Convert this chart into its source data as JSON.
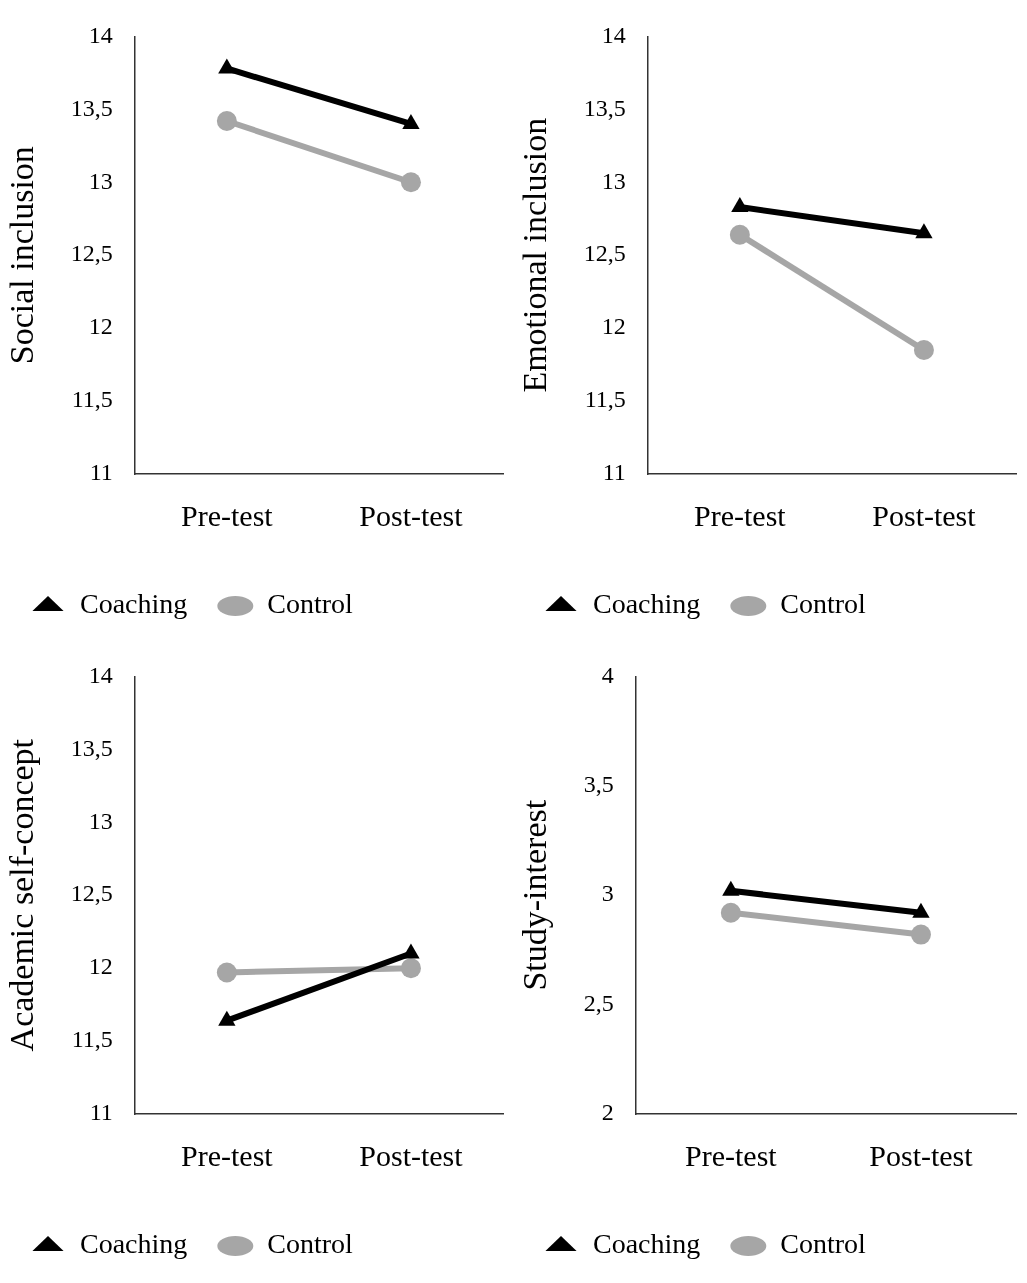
{
  "chart_data": [
    {
      "type": "line",
      "ylabel": "Social inclusion",
      "categories": [
        "Pre-test",
        "Post-test"
      ],
      "ylim": [
        11,
        14
      ],
      "yticks": [
        11,
        {
          "value": 11.5,
          "label": "11,5"
        },
        12,
        {
          "value": 12.5,
          "label": "12,5"
        },
        13,
        {
          "value": 13.5,
          "label": "13,5"
        },
        14
      ],
      "grid": false,
      "legend": "bottom",
      "series": [
        {
          "name": "Coaching",
          "color": "#000000",
          "marker": "triangle",
          "values": [
            13.78,
            13.4
          ]
        },
        {
          "name": "Control",
          "color": "#a6a6a6",
          "marker": "circle",
          "values": [
            13.42,
            13.0
          ]
        }
      ]
    },
    {
      "type": "line",
      "ylabel": "Emotional inclusion",
      "categories": [
        "Pre-test",
        "Post-test"
      ],
      "ylim": [
        11,
        14
      ],
      "yticks": [
        11,
        {
          "value": 11.5,
          "label": "11,5"
        },
        12,
        {
          "value": 12.5,
          "label": "12,5"
        },
        13,
        {
          "value": 13.5,
          "label": "13,5"
        },
        14
      ],
      "grid": false,
      "legend": "bottom",
      "series": [
        {
          "name": "Coaching",
          "color": "#000000",
          "marker": "triangle",
          "values": [
            12.83,
            12.65
          ]
        },
        {
          "name": "Control",
          "color": "#a6a6a6",
          "marker": "circle",
          "values": [
            12.64,
            11.85
          ]
        }
      ]
    },
    {
      "type": "line",
      "ylabel": "Academic self-concept",
      "categories": [
        "Pre-test",
        "Post-test"
      ],
      "ylim": [
        11,
        14
      ],
      "yticks": [
        11,
        {
          "value": 11.5,
          "label": "11,5"
        },
        12,
        {
          "value": 12.5,
          "label": "12,5"
        },
        13,
        {
          "value": 13.5,
          "label": "13,5"
        },
        14
      ],
      "grid": false,
      "legend": "bottom",
      "series": [
        {
          "name": "Coaching",
          "color": "#000000",
          "marker": "triangle",
          "values": [
            11.64,
            12.1
          ]
        },
        {
          "name": "Control",
          "color": "#a6a6a6",
          "marker": "circle",
          "values": [
            11.97,
            12.0
          ]
        }
      ]
    },
    {
      "type": "line",
      "ylabel": "Study-interest",
      "categories": [
        "Pre-test",
        "Post-test"
      ],
      "ylim": [
        2,
        4
      ],
      "yticks": [
        2,
        {
          "value": 2.5,
          "label": "2,5"
        },
        3,
        {
          "value": 3.5,
          "label": "3,5"
        },
        4
      ],
      "grid": false,
      "legend": "bottom",
      "series": [
        {
          "name": "Coaching",
          "color": "#000000",
          "marker": "triangle",
          "values": [
            3.02,
            2.92
          ]
        },
        {
          "name": "Control",
          "color": "#a6a6a6",
          "marker": "circle",
          "values": [
            2.92,
            2.82
          ]
        }
      ]
    }
  ]
}
